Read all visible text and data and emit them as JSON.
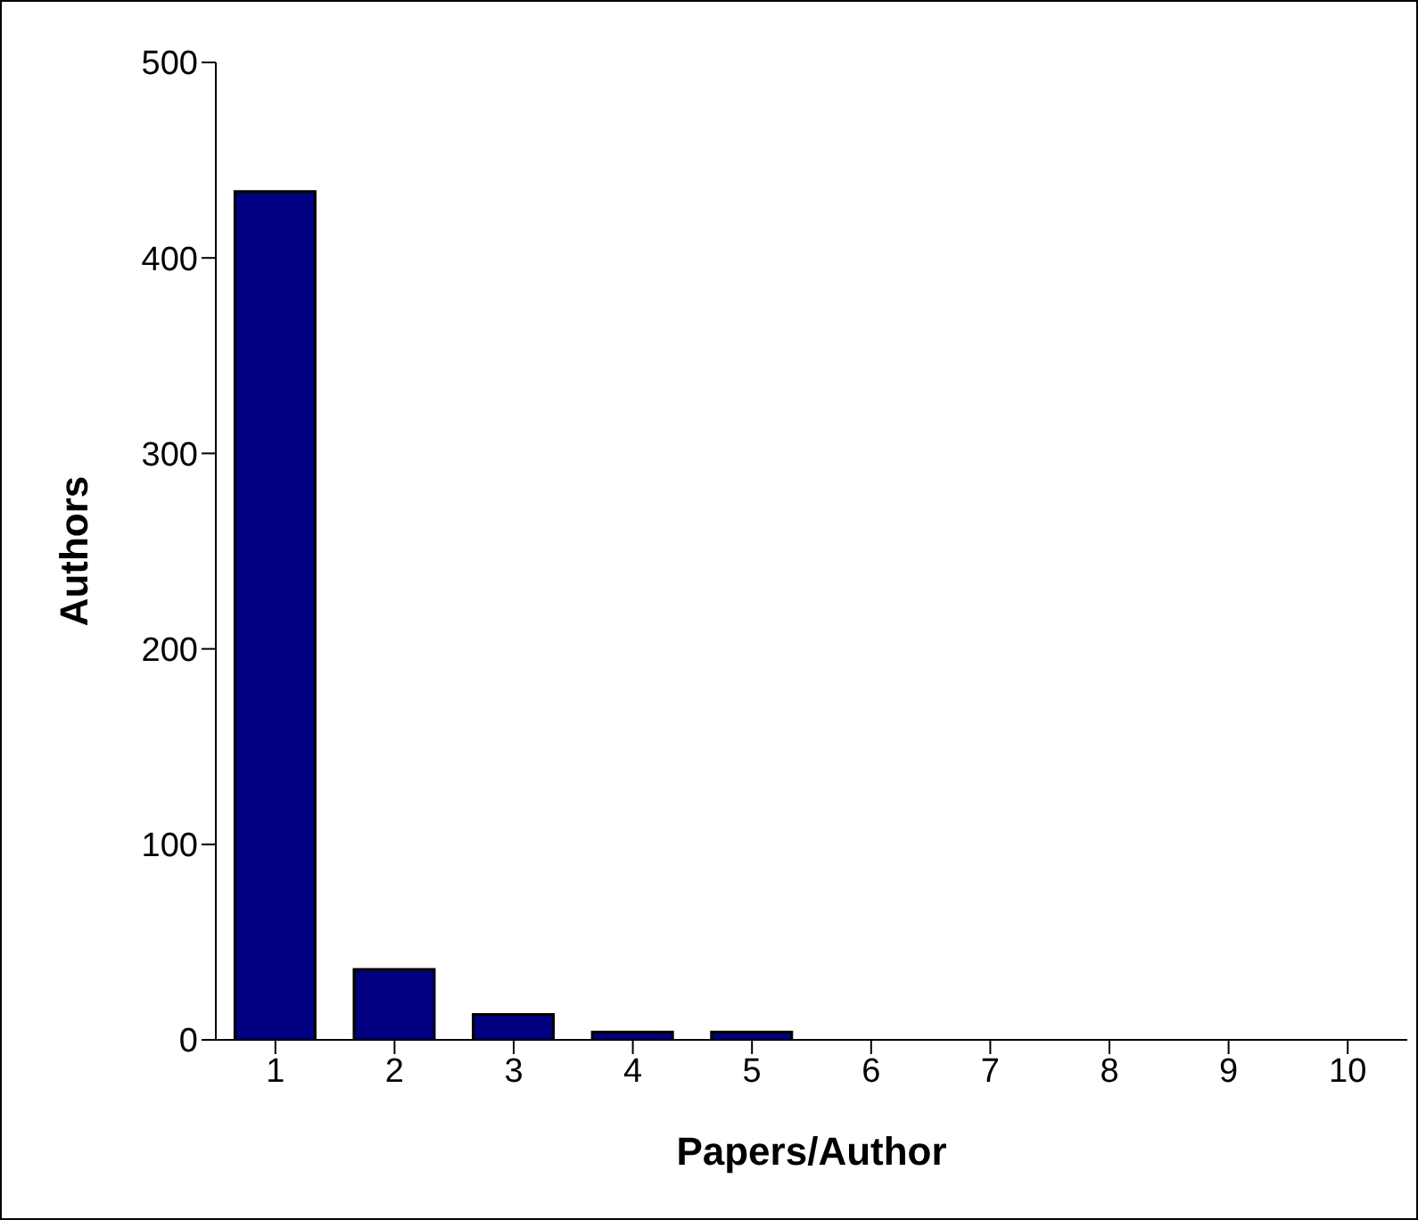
{
  "chart_data": {
    "type": "bar",
    "xlabel": "Papers/Author",
    "ylabel": "Authors",
    "categories": [
      "1",
      "2",
      "3",
      "4",
      "5",
      "6",
      "7",
      "8",
      "9",
      "10"
    ],
    "values": [
      434,
      36,
      13,
      4,
      4,
      0,
      0,
      0,
      0,
      0
    ],
    "color": "#000080",
    "ylim": [
      0,
      500
    ],
    "yticks": [
      0,
      100,
      200,
      300,
      400,
      500
    ]
  }
}
